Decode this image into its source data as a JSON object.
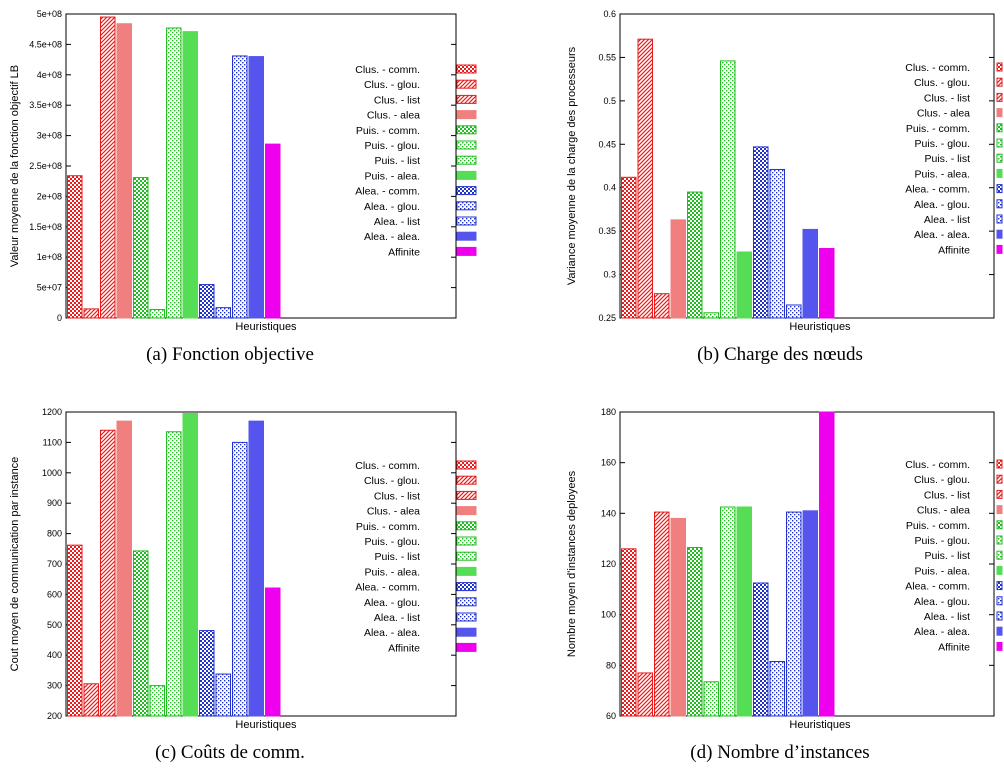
{
  "legend": [
    {
      "label": "Clus. - comm.",
      "color": "#e81c1c",
      "pattern": "checker"
    },
    {
      "label": "Clus. - glou.",
      "color": "#e81c1c",
      "pattern": "diag"
    },
    {
      "label": "Clus. - list",
      "color": "#e81c1c",
      "pattern": "diag"
    },
    {
      "label": "Clus. - alea",
      "color": "#f08080",
      "pattern": "solid"
    },
    {
      "label": "Puis. - comm.",
      "color": "#22bb22",
      "pattern": "checker"
    },
    {
      "label": "Puis. - glou.",
      "color": "#22bb22",
      "pattern": "dots"
    },
    {
      "label": "Puis. - list",
      "color": "#22bb22",
      "pattern": "dots"
    },
    {
      "label": "Puis. - alea.",
      "color": "#55dd55",
      "pattern": "solid"
    },
    {
      "label": "Alea. - comm.",
      "color": "#2233cc",
      "pattern": "checker"
    },
    {
      "label": "Alea. - glou.",
      "color": "#2233cc",
      "pattern": "dots"
    },
    {
      "label": "Alea. - list",
      "color": "#2233cc",
      "pattern": "dots"
    },
    {
      "label": "Alea. - alea.",
      "color": "#5555ee",
      "pattern": "solid"
    },
    {
      "label": "Affinite",
      "color": "#ee00ee",
      "pattern": "solid"
    }
  ],
  "chart_data": [
    {
      "type": "bar",
      "caption": "(a) Fonction objective",
      "xlabel": "Heuristiques",
      "ylabel": "Valeur moyenne de la fonction objectif LB",
      "ylim": [
        0,
        500000000
      ],
      "yticks": [
        0,
        50000000,
        100000000,
        150000000,
        200000000,
        250000000,
        300000000,
        350000000,
        400000000,
        450000000,
        500000000
      ],
      "ytick_labels": [
        "0",
        "5e+07",
        "1e+08",
        "1.5e+08",
        "2e+08",
        "2.5e+08",
        "3e+08",
        "3.5e+08",
        "4e+08",
        "4.5e+08",
        "5e+08"
      ],
      "values": [
        234000000,
        15000000,
        495000000,
        484000000,
        231000000,
        14000000,
        477000000,
        471000000,
        55000000,
        17000000,
        431000000,
        430000000,
        286000000
      ]
    },
    {
      "type": "bar",
      "caption": "(b) Charge des nœuds",
      "xlabel": "Heuristiques",
      "ylabel": "Variance moyenne de la charge des processeurs",
      "ylim": [
        0.25,
        0.6
      ],
      "yticks": [
        0.25,
        0.3,
        0.35,
        0.4,
        0.45,
        0.5,
        0.55,
        0.6
      ],
      "ytick_labels": [
        "0.25",
        "0.3",
        "0.35",
        "0.4",
        "0.45",
        "0.5",
        "0.55",
        "0.6"
      ],
      "values": [
        0.412,
        0.571,
        0.278,
        0.363,
        0.395,
        0.256,
        0.546,
        0.326,
        0.447,
        0.421,
        0.265,
        0.352,
        0.33
      ]
    },
    {
      "type": "bar",
      "caption": "(c) Coûts de comm.",
      "xlabel": "Heuristiques",
      "ylabel": "Cout moyen de communication par instance",
      "ylim": [
        200,
        1200
      ],
      "yticks": [
        200,
        300,
        400,
        500,
        600,
        700,
        800,
        900,
        1000,
        1100,
        1200
      ],
      "ytick_labels": [
        "200",
        "300",
        "400",
        "500",
        "600",
        "700",
        "800",
        "900",
        "1000",
        "1100",
        "1200"
      ],
      "values": [
        762,
        306,
        1140,
        1170,
        743,
        300,
        1135,
        1195,
        481,
        338,
        1100,
        1170,
        621
      ]
    },
    {
      "type": "bar",
      "caption": "(d) Nombre d’instances",
      "xlabel": "Heuristiques",
      "ylabel": "Nombre moyen d'instances deployees",
      "ylim": [
        60,
        180
      ],
      "yticks": [
        60,
        80,
        100,
        120,
        140,
        160,
        180
      ],
      "ytick_labels": [
        "60",
        "80",
        "100",
        "120",
        "140",
        "160",
        "180"
      ],
      "values": [
        126,
        77,
        140.5,
        138,
        126.5,
        73.5,
        142.5,
        142.5,
        112.5,
        81.5,
        140.5,
        141,
        180
      ]
    }
  ]
}
